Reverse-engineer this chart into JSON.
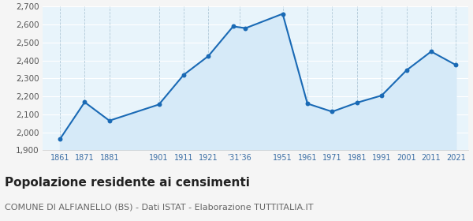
{
  "years": [
    1861,
    1871,
    1881,
    1901,
    1911,
    1921,
    1931,
    1936,
    1951,
    1961,
    1971,
    1981,
    1991,
    2001,
    2011,
    2021
  ],
  "population": [
    1962,
    2168,
    2065,
    2155,
    2320,
    2425,
    2590,
    2580,
    2660,
    2160,
    2115,
    2165,
    2205,
    2345,
    2450,
    2375
  ],
  "tick_labels": [
    "1861",
    "1871",
    "1881",
    "1901",
    "1911",
    "1921",
    "’31’36",
    "1951",
    "1961",
    "1971",
    "1981",
    "1991",
    "2001",
    "2011",
    "2021"
  ],
  "tick_positions": [
    1861,
    1871,
    1881,
    1901,
    1911,
    1921,
    1933.5,
    1951,
    1961,
    1971,
    1981,
    1991,
    2001,
    2011,
    2021
  ],
  "ylim": [
    1900,
    2700
  ],
  "yticks": [
    1900,
    2000,
    2100,
    2200,
    2300,
    2400,
    2500,
    2600,
    2700
  ],
  "xlim": [
    1854,
    2026
  ],
  "line_color": "#1a6ab5",
  "fill_color": "#d6eaf8",
  "marker_color": "#1a6ab5",
  "plot_bg_color": "#e8f4fb",
  "fig_bg_color": "#f5f5f5",
  "hgrid_color": "#ffffff",
  "vgrid_color": "#b0c8d8",
  "title": "Popolazione residente ai censimenti",
  "subtitle": "COMUNE DI ALFIANELLO (BS) - Dati ISTAT - Elaborazione TUTTITALIA.IT",
  "title_fontsize": 11,
  "subtitle_fontsize": 8
}
